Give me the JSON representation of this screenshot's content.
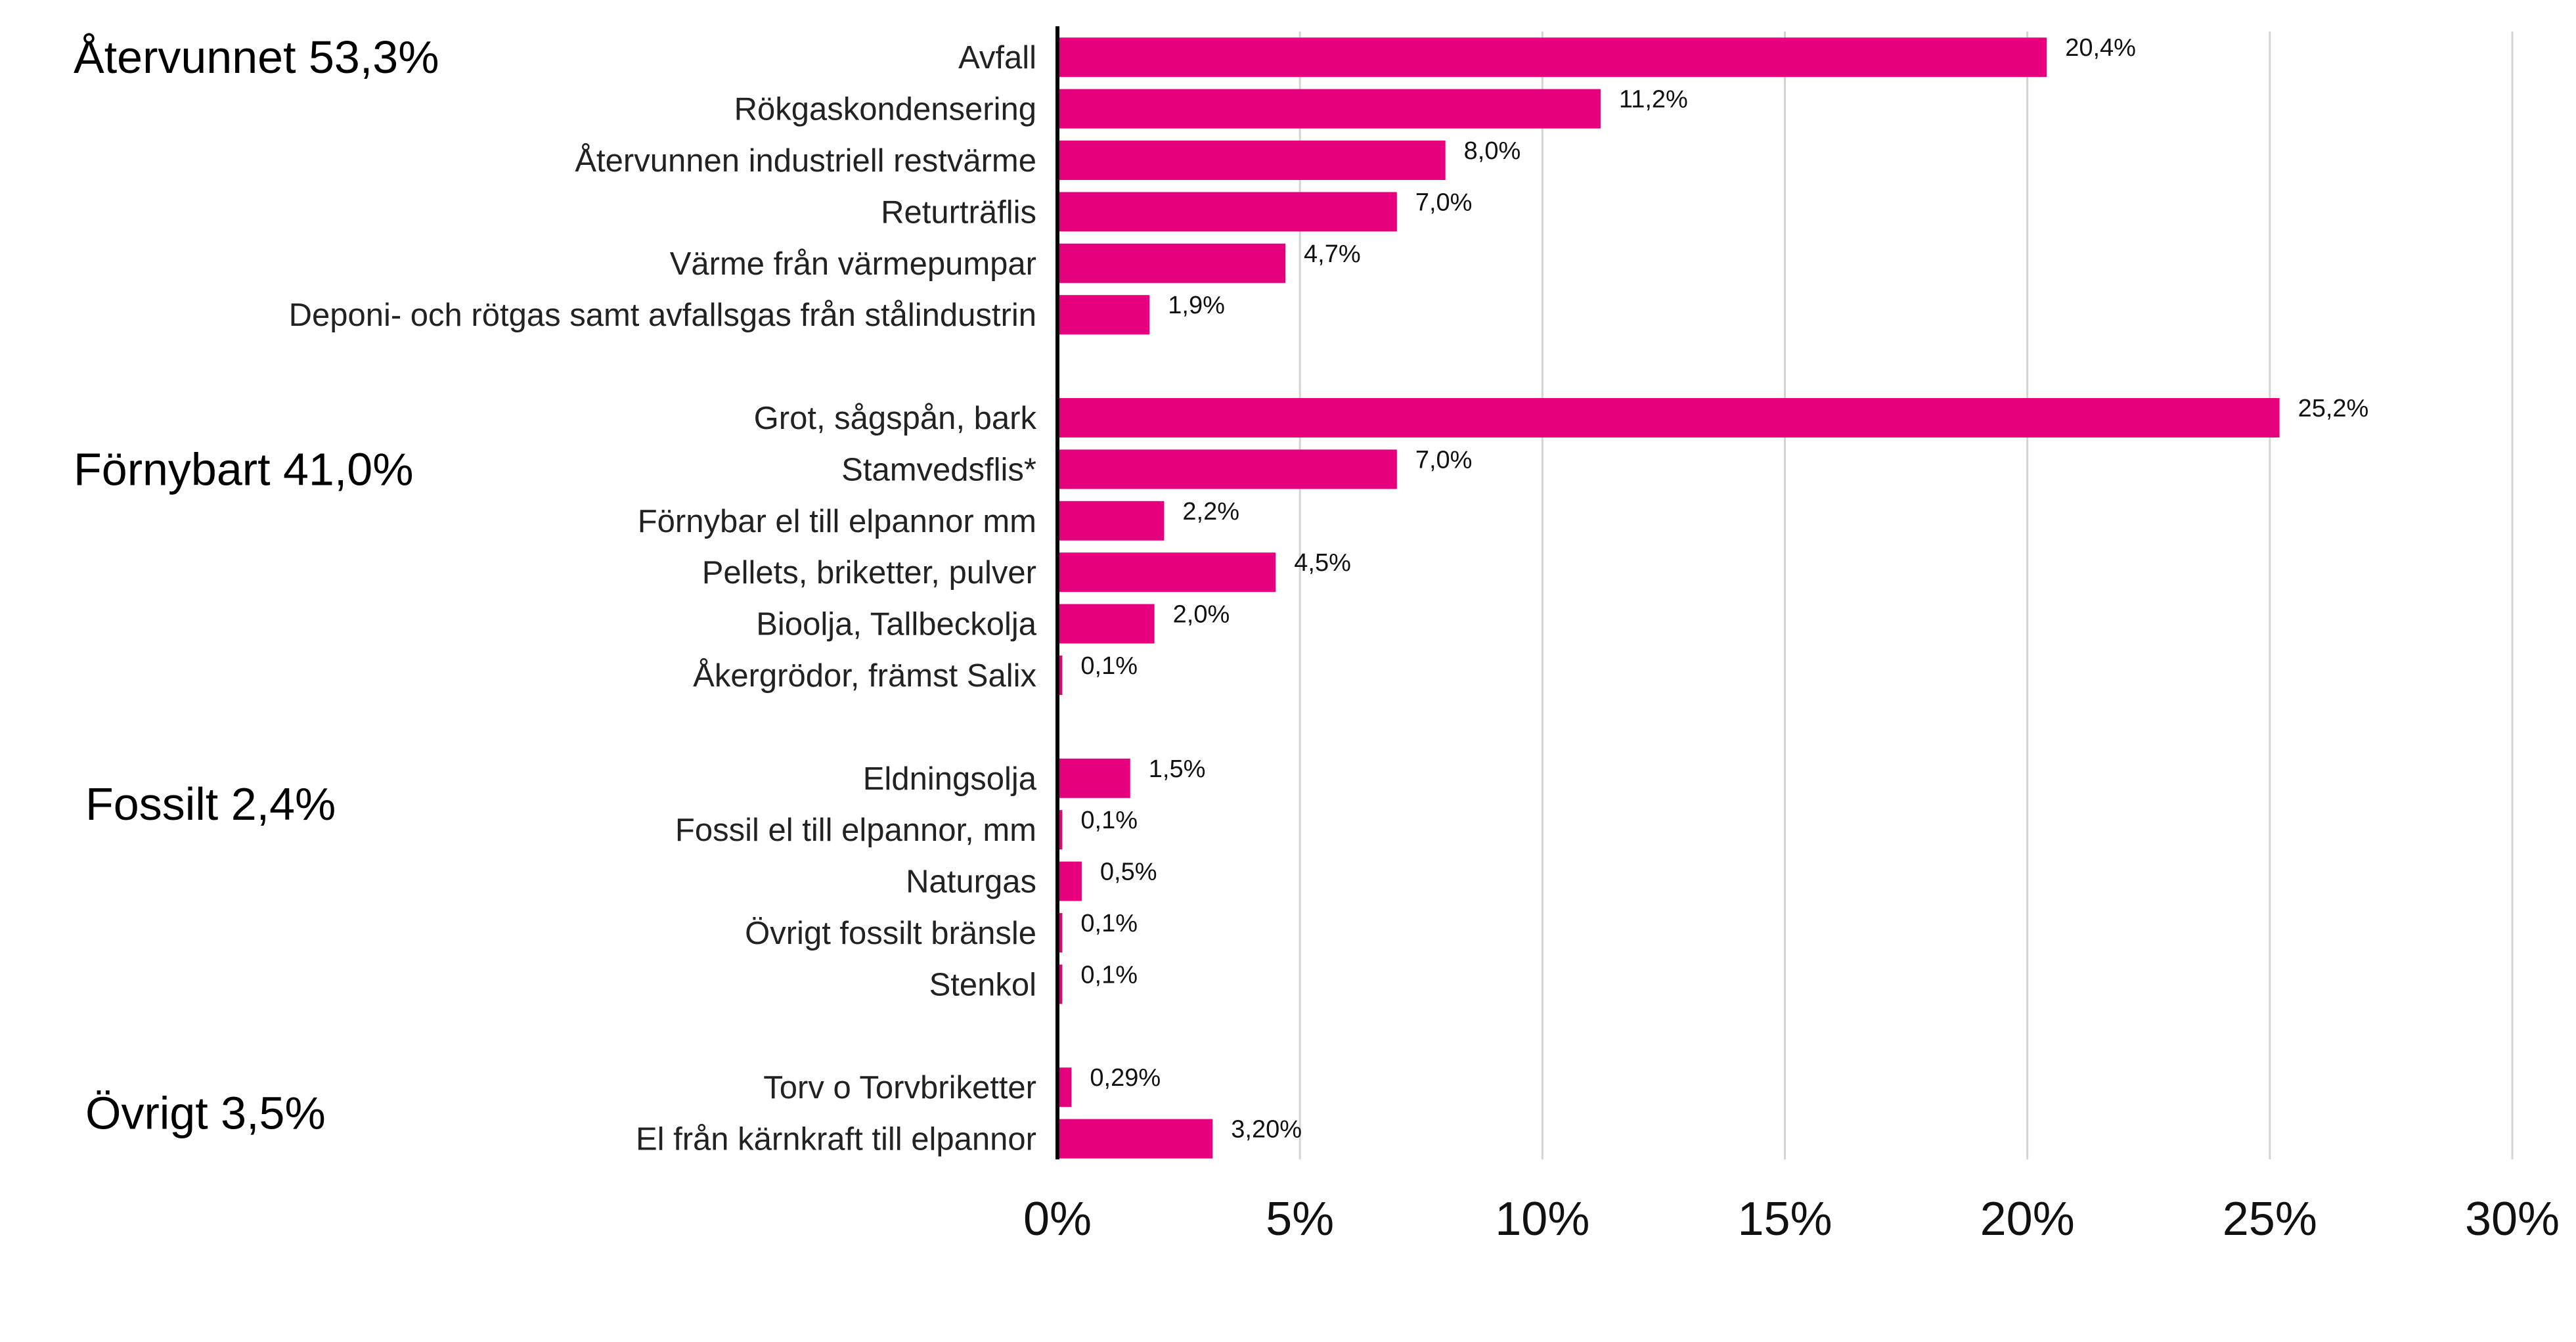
{
  "chart_data": {
    "type": "bar",
    "orientation": "horizontal",
    "bar_color": "#e6007e",
    "xlim": [
      0,
      30
    ],
    "x_ticks": [
      {
        "value": 0,
        "label": "0%"
      },
      {
        "value": 5,
        "label": "5%"
      },
      {
        "value": 10,
        "label": "10%"
      },
      {
        "value": 15,
        "label": "15%"
      },
      {
        "value": 20,
        "label": "20%"
      },
      {
        "value": 25,
        "label": "25%"
      },
      {
        "value": 30,
        "label": "30%"
      }
    ],
    "grid": true,
    "groups": [
      {
        "label": "Återvunnet 53,3%",
        "items": [
          {
            "category": "Avfall",
            "value": 20.4,
            "value_label": "20,4%"
          },
          {
            "category": "Rökgaskondensering",
            "value": 11.2,
            "value_label": "11,2%"
          },
          {
            "category": "Återvunnen industriell restvärme",
            "value": 8.0,
            "value_label": "8,0%"
          },
          {
            "category": "Returträflis",
            "value": 7.0,
            "value_label": "7,0%"
          },
          {
            "category": "Värme från värmepumpar",
            "value": 4.7,
            "value_label": "4,7%"
          },
          {
            "category": "Deponi- och rötgas samt avfallsgas från stålindustrin",
            "value": 1.9,
            "value_label": "1,9%"
          }
        ]
      },
      {
        "label": "Förnybart 41,0%",
        "items": [
          {
            "category": "Grot, sågspån, bark",
            "value": 25.2,
            "value_label": "25,2%"
          },
          {
            "category": "Stamvedsflis*",
            "value": 7.0,
            "value_label": "7,0%"
          },
          {
            "category": "Förnybar el till elpannor mm",
            "value": 2.2,
            "value_label": "2,2%"
          },
          {
            "category": "Pellets, briketter, pulver",
            "value": 4.5,
            "value_label": "4,5%"
          },
          {
            "category": "Bioolja, Tallbeckolja",
            "value": 2.0,
            "value_label": "2,0%"
          },
          {
            "category": "Åkergrödor, främst Salix",
            "value": 0.1,
            "value_label": "0,1%"
          }
        ]
      },
      {
        "label": "Fossilt 2,4%",
        "items": [
          {
            "category": "Eldningsolja",
            "value": 1.5,
            "value_label": "1,5%"
          },
          {
            "category": "Fossil el till elpannor, mm",
            "value": 0.1,
            "value_label": "0,1%"
          },
          {
            "category": "Naturgas",
            "value": 0.5,
            "value_label": "0,5%"
          },
          {
            "category": "Övrigt fossilt bränsle",
            "value": 0.1,
            "value_label": "0,1%"
          },
          {
            "category": "Stenkol",
            "value": 0.1,
            "value_label": "0,1%"
          }
        ]
      },
      {
        "label": "Övrigt 3,5%",
        "items": [
          {
            "category": "Torv o Torvbriketter",
            "value": 0.29,
            "value_label": "0,29%"
          },
          {
            "category": "El från kärnkraft till elpannor",
            "value": 3.2,
            "value_label": "3,20%"
          }
        ]
      }
    ]
  }
}
